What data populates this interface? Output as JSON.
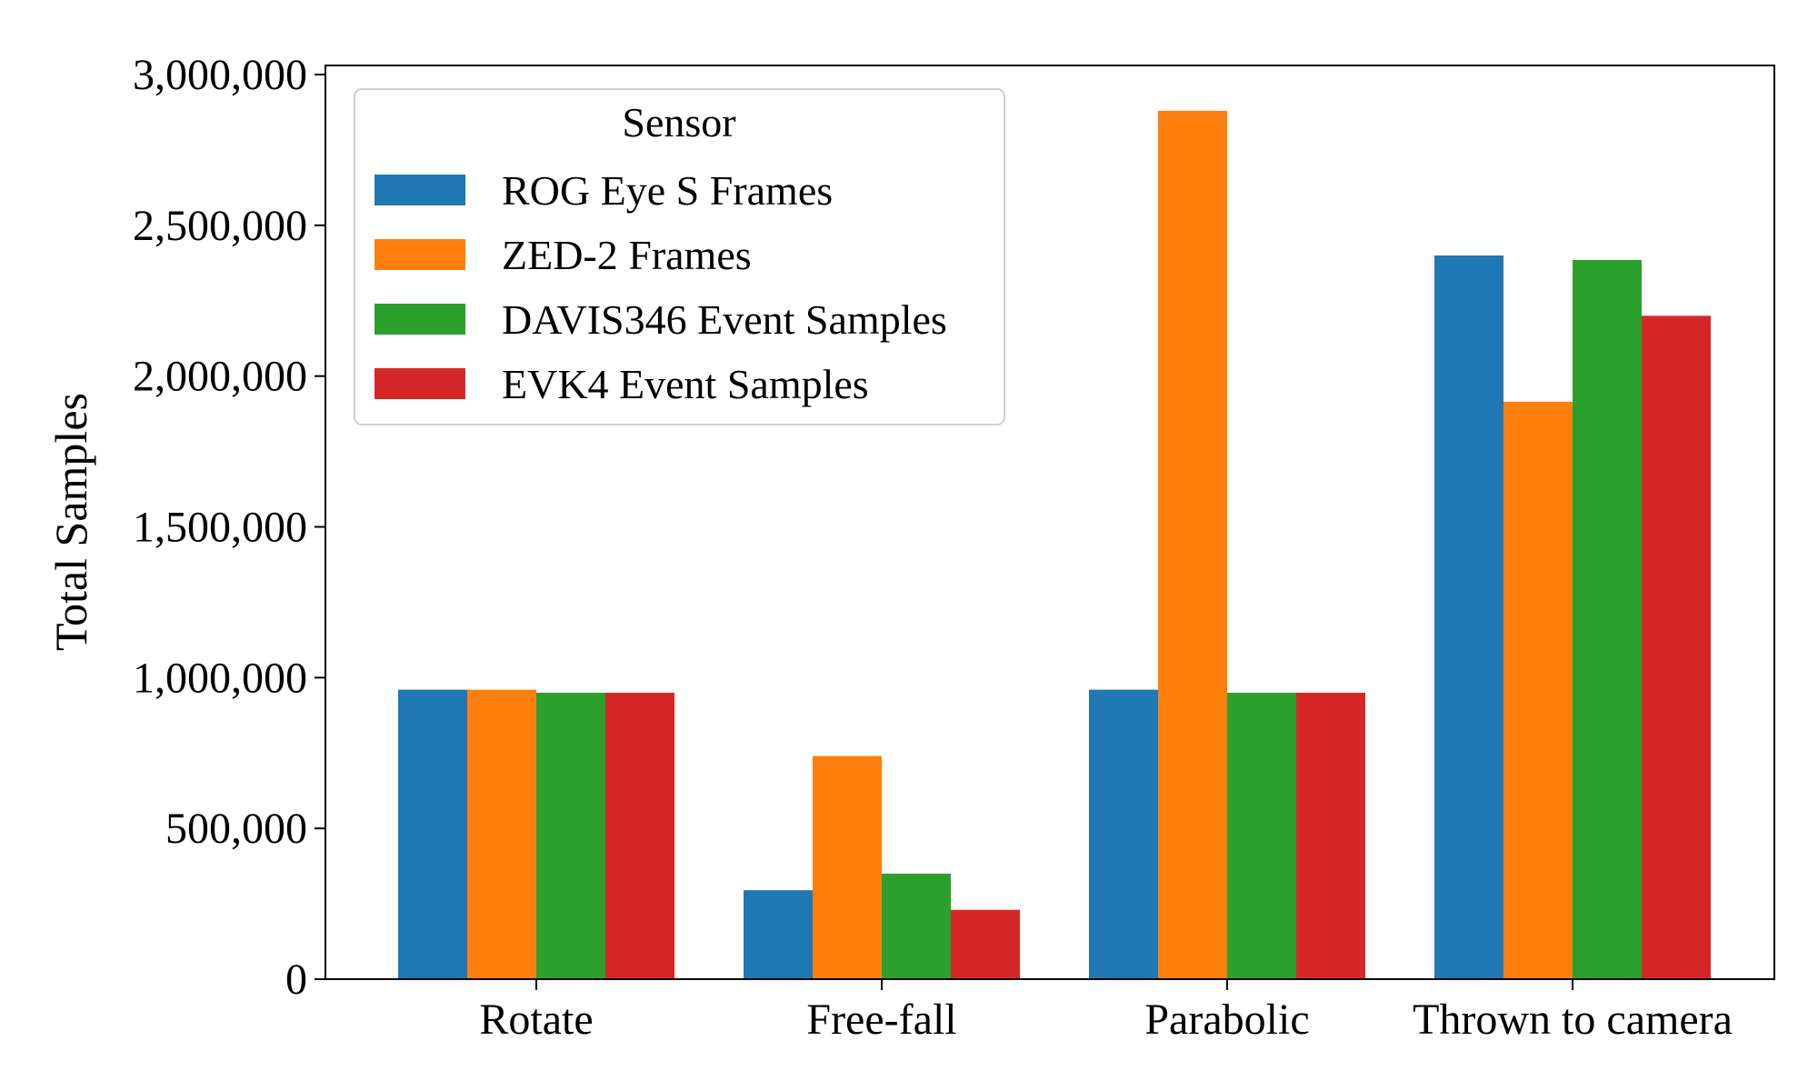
{
  "chart_data": {
    "type": "bar",
    "ylabel": "Total Samples",
    "xlabel": "",
    "categories": [
      "Rotate",
      "Free-fall",
      "Parabolic",
      "Thrown to camera"
    ],
    "ylim": [
      0,
      3000000
    ],
    "yticks": [
      0,
      500000,
      1000000,
      1500000,
      2000000,
      2500000,
      3000000
    ],
    "ytick_labels": [
      "0",
      "500,000",
      "1,000,000",
      "1,500,000",
      "2,000,000",
      "2,500,000",
      "3,000,000"
    ],
    "legend": {
      "title": "Sensor",
      "placement": "upper-left"
    },
    "grid": false,
    "series": [
      {
        "name": "ROG Eye S Frames",
        "color": "#1f77b4",
        "values": [
          960000,
          295000,
          960000,
          2400000
        ]
      },
      {
        "name": "ZED-2 Frames",
        "color": "#ff7f0e",
        "values": [
          960000,
          740000,
          2880000,
          1915000
        ]
      },
      {
        "name": "DAVIS346 Event Samples",
        "color": "#2ca02c",
        "values": [
          950000,
          350000,
          950000,
          2385000
        ]
      },
      {
        "name": "EVK4 Event Samples",
        "color": "#d62728",
        "values": [
          950000,
          230000,
          950000,
          2200000
        ]
      }
    ]
  }
}
